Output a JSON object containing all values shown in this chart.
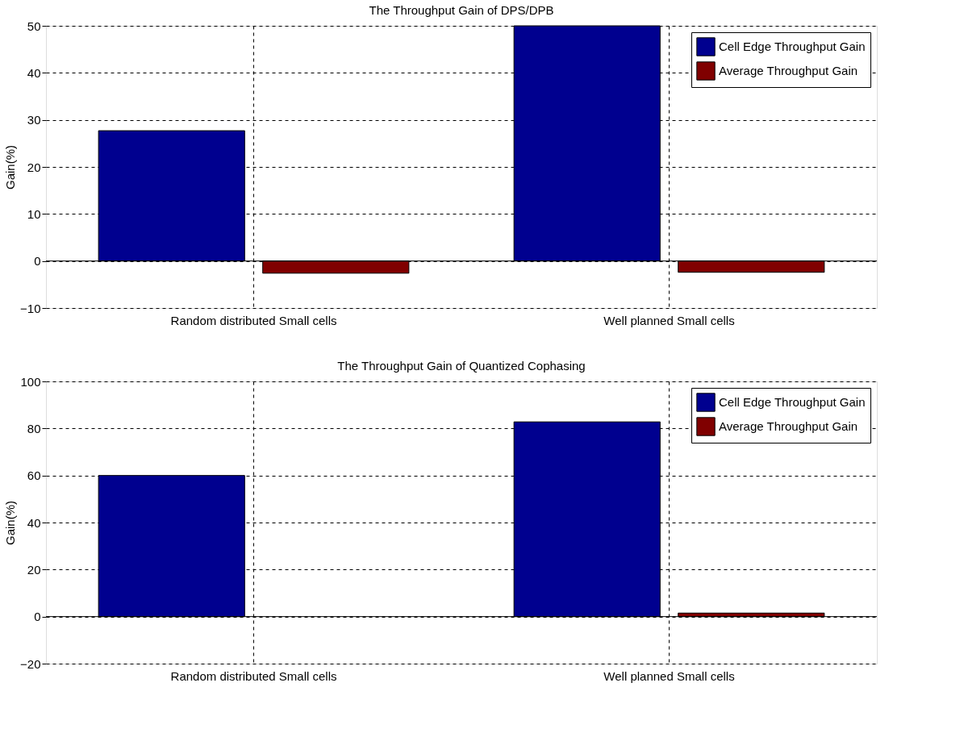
{
  "chart_data": [
    {
      "type": "bar",
      "title": "The Throughput Gain of DPS/DPB",
      "ylabel": "Gain(%)",
      "categories": [
        "Random distributed Small cells",
        "Well planned Small cells"
      ],
      "series": [
        {
          "name": "Cell Edge Throughput Gain",
          "color": "#00008f",
          "values": [
            27.7,
            50
          ]
        },
        {
          "name": "Average Throughput Gain",
          "color": "#800000",
          "values": [
            -2.6,
            -2.4
          ]
        }
      ],
      "ylim": [
        -10,
        50
      ],
      "yticks": [
        -10,
        0,
        10,
        20,
        30,
        40,
        50
      ],
      "grid": true,
      "legend": "top right"
    },
    {
      "type": "bar",
      "title": "The Throughput Gain of Quantized Cophasing",
      "ylabel": "Gain(%)",
      "categories": [
        "Random distributed Small cells",
        "Well planned Small cells"
      ],
      "series": [
        {
          "name": "Cell Edge Throughput Gain",
          "color": "#00008f",
          "values": [
            60,
            82.8
          ]
        },
        {
          "name": "Average Throughput Gain",
          "color": "#800000",
          "values": [
            null,
            1.5
          ]
        }
      ],
      "ylim": [
        -20,
        100
      ],
      "yticks": [
        -20,
        0,
        20,
        40,
        60,
        80,
        100
      ],
      "grid": true,
      "legend": "top right"
    }
  ]
}
